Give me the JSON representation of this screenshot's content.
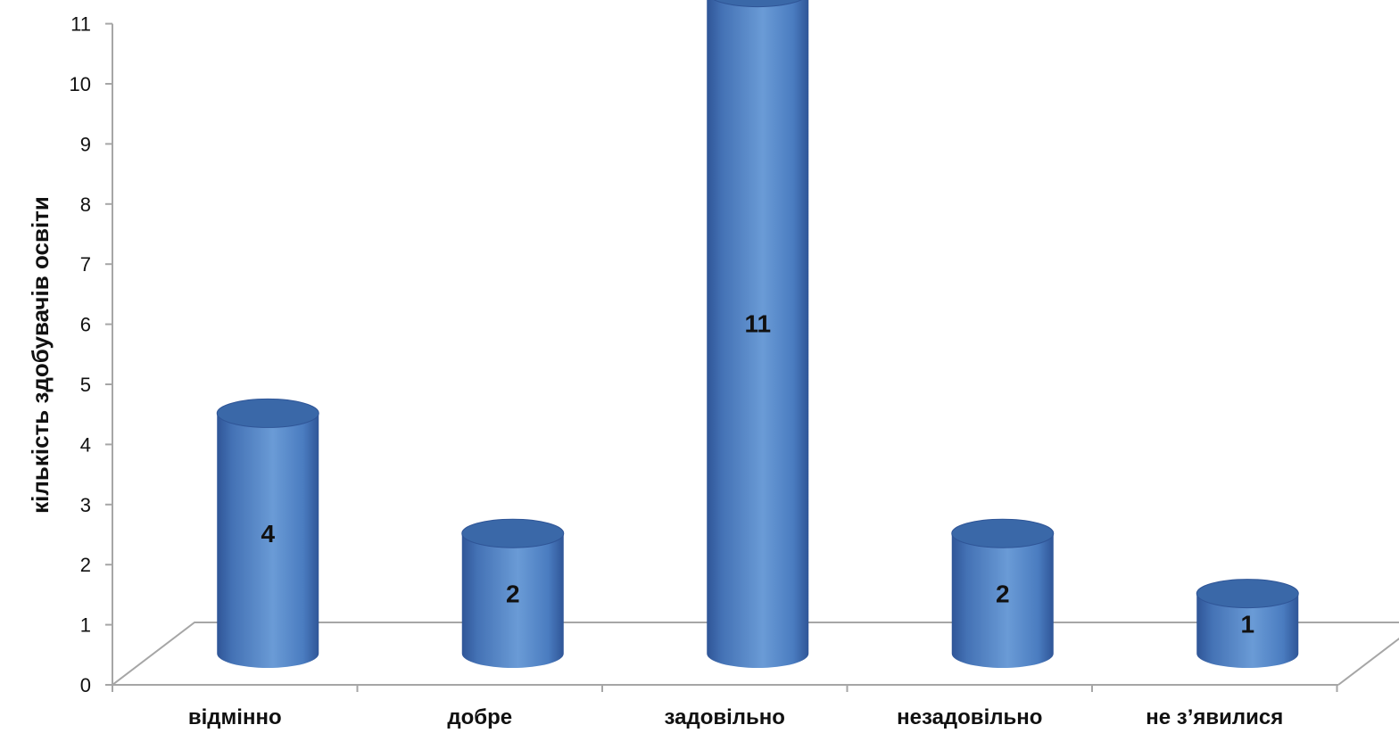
{
  "chart_data": {
    "type": "bar",
    "style": "3d-cylinder",
    "categories": [
      "відмінно",
      "добре",
      "задовільно",
      "незадовільно",
      "не з’явилися"
    ],
    "values": [
      4,
      2,
      11,
      2,
      1
    ],
    "data_labels": [
      "4",
      "2",
      "11",
      "2",
      "1"
    ],
    "title": "",
    "xlabel": "",
    "ylabel": "кількість здобувачів освіти",
    "ylim": [
      0,
      11
    ],
    "yticks": [
      "0",
      "1",
      "2",
      "3",
      "4",
      "5",
      "6",
      "7",
      "8",
      "9",
      "10",
      "11"
    ],
    "grid": false,
    "legend": "none",
    "colors": {
      "bar_mid": "#4f81bd",
      "bar_light": "#6f9fd6",
      "bar_dark": "#2f5597",
      "top": "#3a68a8",
      "axis": "#a6a6a6"
    }
  }
}
